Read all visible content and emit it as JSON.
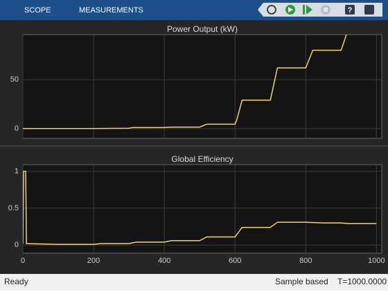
{
  "toolbar": {
    "tabs": [
      "SCOPE",
      "MEASUREMENTS"
    ],
    "help": "?"
  },
  "chart_data": [
    {
      "type": "line",
      "title": "Power Output (kW)",
      "color": "#f2d36b",
      "x": [
        0,
        100,
        200,
        300,
        310,
        400,
        420,
        500,
        520,
        600,
        605,
        620,
        700,
        720,
        800,
        820,
        900,
        915
      ],
      "values": [
        0,
        0,
        0,
        0.3,
        1,
        1,
        1.5,
        1.5,
        4.5,
        4.5,
        9,
        29,
        29,
        62,
        62,
        80,
        80,
        96
      ],
      "xlim": [
        0,
        1015
      ],
      "ylim": [
        -10,
        96
      ],
      "xticks": [
        0,
        200,
        400,
        600,
        800,
        1000
      ],
      "yticks": [
        0,
        50
      ],
      "grid": true,
      "show_xtick_labels": false
    },
    {
      "type": "line",
      "title": "Global Efficiency",
      "color": "#f2d36b",
      "x": [
        0,
        2,
        8,
        10,
        100,
        200,
        220,
        300,
        320,
        400,
        420,
        500,
        520,
        600,
        620,
        700,
        720,
        800,
        850,
        900,
        920,
        1000
      ],
      "values": [
        0.02,
        1,
        1,
        0.02,
        0.01,
        0.01,
        0.02,
        0.02,
        0.04,
        0.04,
        0.06,
        0.06,
        0.11,
        0.11,
        0.24,
        0.24,
        0.31,
        0.31,
        0.3,
        0.3,
        0.29,
        0.29
      ],
      "xlim": [
        0,
        1015
      ],
      "ylim": [
        -0.11,
        1.09
      ],
      "xticks": [
        0,
        200,
        400,
        600,
        800,
        1000
      ],
      "yticks": [
        0,
        0.5,
        1
      ],
      "grid": true,
      "show_xtick_labels": true
    }
  ],
  "status": {
    "left": "Ready",
    "mode": "Sample based",
    "time": "T=1000.0000"
  }
}
